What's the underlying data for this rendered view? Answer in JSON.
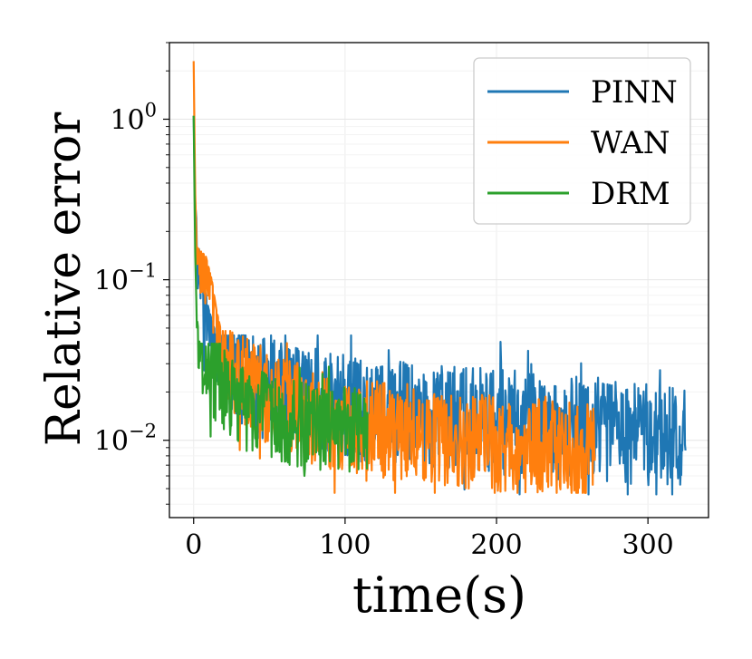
{
  "chart_data": {
    "type": "line",
    "title": "",
    "xlabel": "time(s)",
    "ylabel": "Relative error",
    "yscale": "log",
    "xlim": [
      -16,
      340
    ],
    "ylim": [
      0.0033,
      3.0
    ],
    "xticks": [
      0,
      100,
      200,
      300
    ],
    "xtick_labels": [
      "0",
      "100",
      "200",
      "300"
    ],
    "yticks": [
      0.01,
      0.1,
      1
    ],
    "ytick_labels": [
      {
        "base": "10",
        "exp": "−2"
      },
      {
        "base": "10",
        "exp": "−1"
      },
      {
        "base": "10",
        "exp": "0"
      }
    ],
    "grid": true,
    "legend_position": "top-right",
    "series": [
      {
        "name": "PINN",
        "color": "#1f77b4",
        "x_end": 325,
        "anchors": [
          [
            0,
            1.05
          ],
          [
            1,
            0.3
          ],
          [
            3,
            0.17
          ],
          [
            6,
            0.1
          ],
          [
            10,
            0.065
          ],
          [
            15,
            0.045
          ],
          [
            25,
            0.03
          ],
          [
            40,
            0.022
          ],
          [
            60,
            0.019
          ],
          [
            100,
            0.016
          ],
          [
            150,
            0.014
          ],
          [
            200,
            0.013
          ],
          [
            250,
            0.012
          ],
          [
            300,
            0.011
          ],
          [
            325,
            0.0105
          ]
        ],
        "noise": 0.33,
        "y_max": 0.045,
        "y_min": 0.0046
      },
      {
        "name": "WAN",
        "color": "#ff7f0e",
        "x_end": 265,
        "anchors": [
          [
            0,
            2.3
          ],
          [
            1,
            0.35
          ],
          [
            2,
            0.16
          ],
          [
            8,
            0.14
          ],
          [
            12,
            0.1
          ],
          [
            15,
            0.065
          ],
          [
            20,
            0.04
          ],
          [
            30,
            0.025
          ],
          [
            50,
            0.018
          ],
          [
            80,
            0.014
          ],
          [
            115,
            0.012
          ],
          [
            150,
            0.0105
          ],
          [
            200,
            0.0095
          ],
          [
            265,
            0.0085
          ]
        ],
        "noise": 0.3,
        "y_max": 0.048,
        "y_min": 0.0047
      },
      {
        "name": "DRM",
        "color": "#2ca02c",
        "x_end": 115,
        "anchors": [
          [
            0,
            1.05
          ],
          [
            1,
            0.15
          ],
          [
            2,
            0.06
          ],
          [
            4,
            0.04
          ],
          [
            8,
            0.032
          ],
          [
            15,
            0.024
          ],
          [
            25,
            0.018
          ],
          [
            40,
            0.015
          ],
          [
            60,
            0.013
          ],
          [
            80,
            0.012
          ],
          [
            115,
            0.0115
          ]
        ],
        "noise": 0.27,
        "y_max": 0.04,
        "y_min": 0.0058
      }
    ]
  }
}
